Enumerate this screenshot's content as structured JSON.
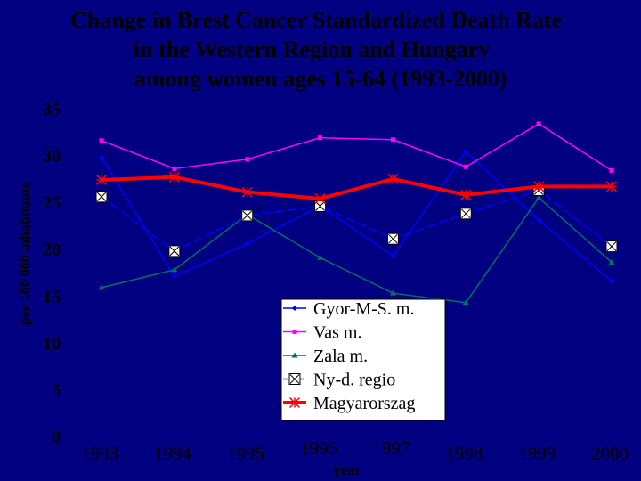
{
  "chart_data": {
    "type": "line",
    "title_lines": [
      "Change in Brest Cancer Standardized Death Rate",
      "in the Western Region and Hungary",
      "among women ages 15-64 (1993-2000)"
    ],
    "xlabel": "year",
    "ylabel": "per 100 000 inhabitants",
    "categories": [
      "1993",
      "1994",
      "1995",
      "1996",
      "1997",
      "1998",
      "1999",
      "2000"
    ],
    "ylim": [
      0,
      35
    ],
    "yticks": [
      "0",
      "5",
      "10",
      "15",
      "20",
      "25",
      "30",
      "35"
    ],
    "grid": false,
    "legend_position": "center-right",
    "series": [
      {
        "name": "Gyor-M-S. m.",
        "values": [
          29.7,
          17.0,
          20.5,
          24.5,
          19.2,
          30.3,
          23.0,
          16.5
        ],
        "color": "#0000ff",
        "marker": "diamond",
        "width": 1.5
      },
      {
        "name": "Vas m.",
        "values": [
          31.5,
          28.5,
          29.5,
          31.8,
          31.6,
          28.7,
          33.3,
          28.3
        ],
        "color": "#ff00ff",
        "marker": "square",
        "width": 1.5
      },
      {
        "name": "Zala m.",
        "values": [
          15.8,
          17.7,
          23.6,
          19.0,
          15.2,
          14.2,
          25.4,
          18.5
        ],
        "color": "#007060",
        "marker": "triangle",
        "width": 1.5
      },
      {
        "name": "Ny-d. regio",
        "values": [
          25.5,
          19.7,
          23.5,
          24.5,
          21.0,
          23.7,
          26.2,
          20.2
        ],
        "color": "#0000ff",
        "marker": "x-box",
        "width": 1.5
      },
      {
        "name": "Magyarorszag",
        "values": [
          27.3,
          27.6,
          26.0,
          25.3,
          27.4,
          25.7,
          26.6,
          26.6
        ],
        "color": "#ff0000",
        "marker": "star",
        "width": 4
      }
    ]
  }
}
